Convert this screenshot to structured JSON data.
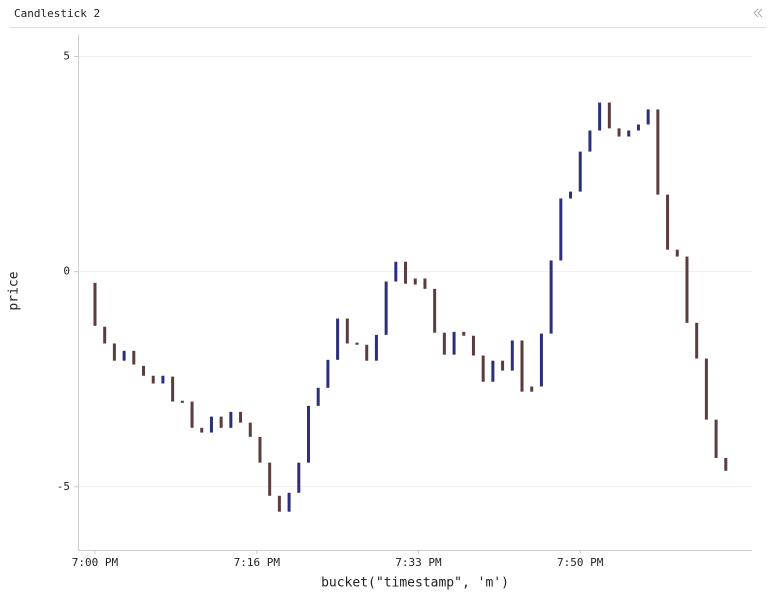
{
  "chart_data": {
    "type": "candlestick",
    "title": "Candlestick 2",
    "x_label": "bucket(\"timestamp\", 'm')",
    "y_label": "price",
    "x": [
      0,
      1,
      2,
      3,
      4,
      5,
      6,
      7,
      8,
      9,
      10,
      11,
      12,
      13,
      14,
      15,
      16,
      17,
      18,
      19,
      20,
      21,
      22,
      23,
      24,
      25,
      26,
      27,
      28,
      29,
      30,
      31,
      32,
      33,
      34,
      35,
      36,
      37,
      38,
      39,
      40,
      41,
      42,
      43,
      44,
      45,
      46,
      47,
      48,
      49,
      50,
      51,
      52,
      53,
      54,
      55,
      56,
      57,
      58,
      59,
      60,
      61,
      62,
      63,
      64,
      65
    ],
    "open": [
      -0.26,
      -1.28,
      -1.67,
      -2.07,
      -1.84,
      -2.19,
      -2.42,
      -2.6,
      -2.44,
      -3.0,
      -3.02,
      -3.63,
      -3.74,
      -3.37,
      -3.63,
      -3.26,
      -3.51,
      -3.84,
      -4.44,
      -5.21,
      -5.58,
      -5.14,
      -4.44,
      -3.12,
      -2.7,
      -2.05,
      -1.09,
      -1.65,
      -1.7,
      -2.07,
      -1.47,
      -0.23,
      0.23,
      -0.16,
      -0.16,
      -0.4,
      -1.42,
      -1.93,
      -1.4,
      -1.49,
      -1.95,
      -2.56,
      -2.07,
      -2.3,
      -1.6,
      -2.67,
      -2.67,
      -1.44,
      0.26,
      1.7,
      1.86,
      2.79,
      3.28,
      3.93,
      3.33,
      3.14,
      3.28,
      3.42,
      3.77,
      1.79,
      0.51,
      0.35,
      -1.19,
      -2.02,
      -3.44,
      -4.33
    ],
    "close": [
      -1.26,
      -1.67,
      -2.07,
      -1.84,
      -2.16,
      -2.42,
      -2.6,
      -2.42,
      -3.02,
      -3.05,
      -3.63,
      -3.74,
      -3.37,
      -3.63,
      -3.26,
      -3.51,
      -3.84,
      -4.44,
      -5.21,
      -5.58,
      -5.14,
      -4.44,
      -3.12,
      -2.7,
      -2.05,
      -1.09,
      -1.67,
      -1.7,
      -2.07,
      -1.47,
      -0.23,
      0.23,
      -0.28,
      -0.3,
      -0.4,
      -1.42,
      -1.93,
      -1.4,
      -1.49,
      -1.95,
      -2.56,
      -2.07,
      -2.3,
      -1.6,
      -2.79,
      -2.79,
      -1.44,
      0.26,
      1.7,
      1.86,
      2.79,
      3.28,
      3.93,
      3.33,
      3.14,
      3.28,
      3.42,
      3.77,
      1.79,
      0.51,
      0.35,
      -1.19,
      -2.02,
      -3.44,
      -4.33,
      -4.63
    ],
    "up_color": "#2c2f7c",
    "down_color": "#5b3d3d",
    "xlim": [
      -1.75,
      67.7
    ],
    "ylim": [
      -6.47,
      5.5
    ],
    "xticks": [
      {
        "value": 0,
        "label": "7:00 PM"
      },
      {
        "value": 16.67,
        "label": "7:16 PM"
      },
      {
        "value": 33.33,
        "label": "7:33 PM"
      },
      {
        "value": 50,
        "label": "7:50 PM"
      }
    ],
    "yticks": [
      -5,
      0,
      5
    ],
    "grid": true
  }
}
